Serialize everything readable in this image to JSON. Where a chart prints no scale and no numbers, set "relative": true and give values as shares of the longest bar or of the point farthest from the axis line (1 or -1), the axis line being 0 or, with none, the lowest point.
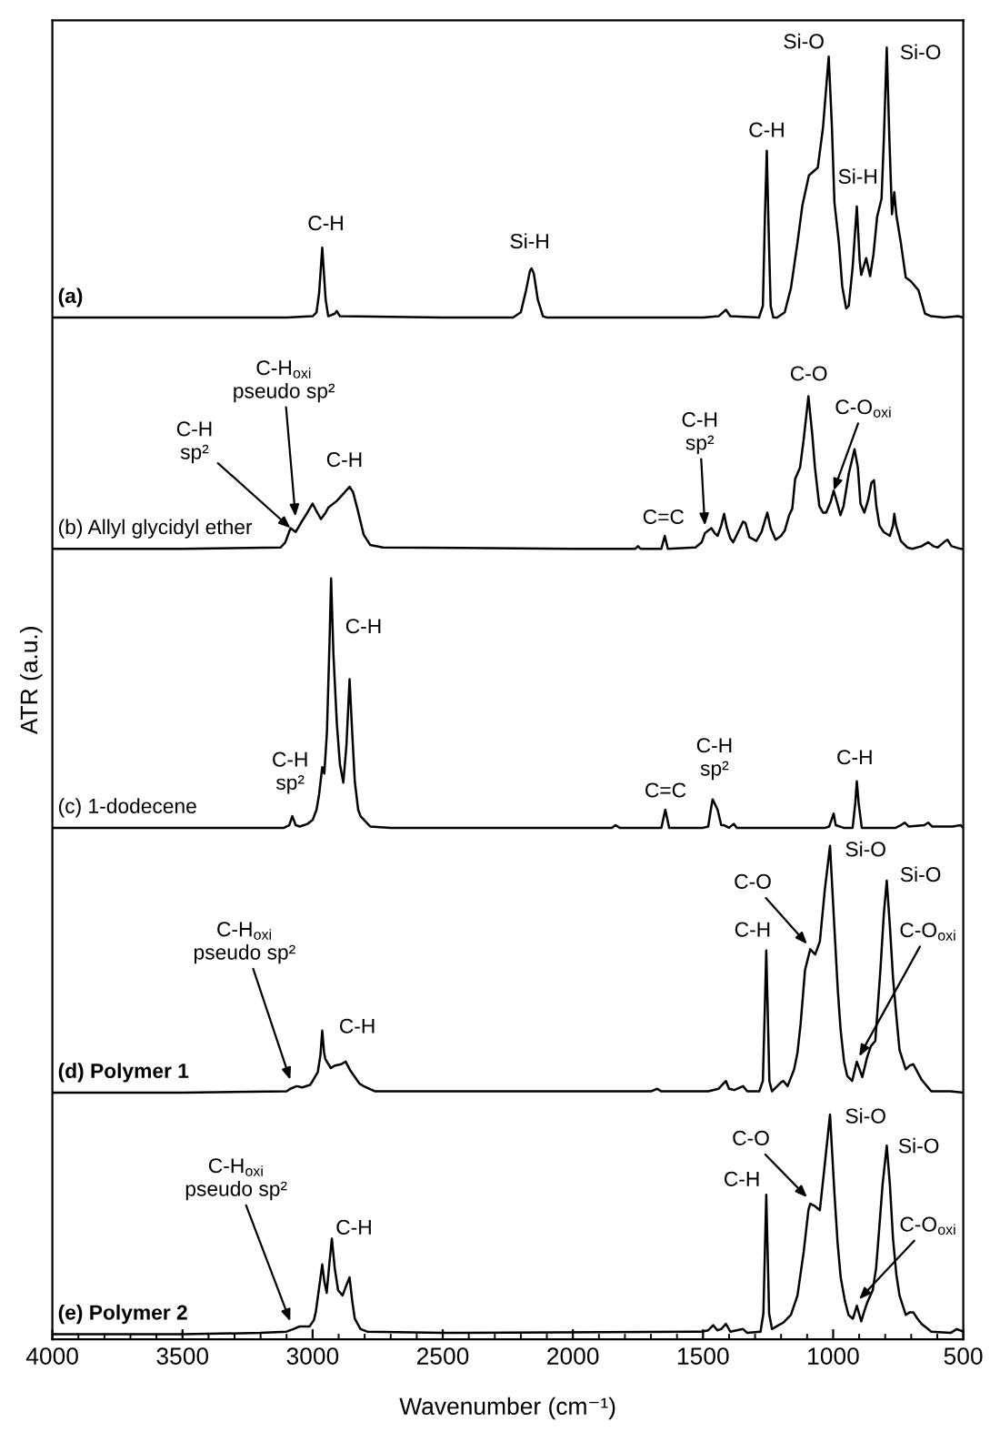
{
  "chart_data": {
    "type": "line",
    "relative": true,
    "xlabel": "Wavenumber (cm⁻¹)",
    "ylabel": "ATR (a.u.)",
    "xlim": [
      4000,
      500
    ],
    "xticks": [
      4000,
      {
        "value": 3900,
        "label": null
      },
      {
        "value": 3800,
        "label": null
      },
      {
        "value": 3700,
        "label": null
      },
      {
        "value": 3600,
        "label": null
      },
      3500,
      {
        "value": 3400,
        "label": null
      },
      {
        "value": 3300,
        "label": null
      },
      {
        "value": 3200,
        "label": null
      },
      {
        "value": 3100,
        "label": null
      },
      3000,
      {
        "value": 2900,
        "label": null
      },
      {
        "value": 2800,
        "label": null
      },
      {
        "value": 2700,
        "label": null
      },
      {
        "value": 2600,
        "label": null
      },
      2500,
      {
        "value": 2400,
        "label": null
      },
      {
        "value": 2300,
        "label": null
      },
      {
        "value": 2200,
        "label": null
      },
      {
        "value": 2100,
        "label": null
      },
      2000,
      {
        "value": 1900,
        "label": null
      },
      {
        "value": 1800,
        "label": null
      },
      {
        "value": 1700,
        "label": null
      },
      {
        "value": 1600,
        "label": null
      },
      1500,
      {
        "value": 1400,
        "label": null
      },
      {
        "value": 1300,
        "label": null
      },
      {
        "value": 1200,
        "label": null
      },
      {
        "value": 1100,
        "label": null
      },
      1000,
      {
        "value": 900,
        "label": null
      },
      {
        "value": 800,
        "label": null
      },
      {
        "value": 700,
        "label": null
      },
      {
        "value": 600,
        "label": null
      },
      500
    ],
    "tick_labels": "x",
    "series": [
      {
        "name": "(a)",
        "color": "#000000",
        "x": [
          4000,
          3500,
          3100,
          3000,
          2985,
          2975,
          2963,
          2950,
          2940,
          2915,
          2907,
          2895,
          2500,
          2230,
          2200,
          2180,
          2165,
          2159,
          2150,
          2135,
          2115,
          2100,
          1500,
          1440,
          1412,
          1395,
          1285,
          1270,
          1262,
          1255,
          1248,
          1240,
          1230,
          1215,
          1186,
          1162,
          1137,
          1118,
          1093,
          1059,
          1039,
          1017,
          1005,
          995,
          978,
          965,
          950,
          940,
          925,
          909,
          898,
          892,
          873,
          858,
          845,
          831,
          814,
          805,
          794,
          784,
          774,
          765,
          757,
          740,
          721,
          701,
          672,
          647,
          623,
          574,
          520,
          500
        ],
        "values": [
          0.791,
          0.791,
          0.791,
          0.792,
          0.795,
          0.81,
          0.845,
          0.805,
          0.792,
          0.794,
          0.796,
          0.792,
          0.791,
          0.791,
          0.795,
          0.812,
          0.827,
          0.829,
          0.825,
          0.805,
          0.792,
          0.791,
          0.791,
          0.792,
          0.797,
          0.792,
          0.791,
          0.8,
          0.87,
          0.92,
          0.86,
          0.8,
          0.791,
          0.791,
          0.795,
          0.814,
          0.849,
          0.878,
          0.901,
          0.907,
          0.938,
          0.993,
          0.94,
          0.88,
          0.849,
          0.815,
          0.798,
          0.8,
          0.83,
          0.877,
          0.835,
          0.824,
          0.837,
          0.823,
          0.84,
          0.869,
          0.883,
          0.93,
          1.0,
          0.93,
          0.871,
          0.888,
          0.87,
          0.849,
          0.822,
          0.819,
          0.812,
          0.794,
          0.792,
          0.791,
          0.792,
          0.791
        ]
      },
      {
        "name": "(b) Allyl glycidyl ether",
        "color": "#000000",
        "x": [
          4000,
          3500,
          3123,
          3105,
          3085,
          3065,
          3045,
          3020,
          3000,
          2985,
          2968,
          2950,
          2939,
          2907,
          2880,
          2858,
          2845,
          2828,
          2804,
          2779,
          2730,
          2000,
          1760,
          1750,
          1740,
          1660,
          1647,
          1635,
          1529,
          1505,
          1493,
          1468,
          1455,
          1444,
          1430,
          1419,
          1408,
          1395,
          1384,
          1365,
          1346,
          1337,
          1322,
          1295,
          1275,
          1253,
          1240,
          1221,
          1200,
          1186,
          1169,
          1157,
          1146,
          1127,
          1113,
          1095,
          1080,
          1070,
          1053,
          1039,
          1027,
          1010,
          998,
          985,
          972,
          960,
          940,
          918,
          905,
          895,
          880,
          865,
          853,
          843,
          834,
          822,
          806,
          782,
          770,
          765,
          758,
          740,
          715,
          696,
          660,
          635,
          615,
          598,
          575,
          561,
          545,
          512,
          500
        ],
        "values": [
          0.612,
          0.612,
          0.613,
          0.617,
          0.628,
          0.625,
          0.632,
          0.64,
          0.647,
          0.641,
          0.635,
          0.64,
          0.644,
          0.649,
          0.655,
          0.66,
          0.656,
          0.643,
          0.623,
          0.615,
          0.613,
          0.612,
          0.612,
          0.614,
          0.612,
          0.612,
          0.622,
          0.612,
          0.613,
          0.617,
          0.624,
          0.628,
          0.624,
          0.622,
          0.63,
          0.639,
          0.628,
          0.62,
          0.617,
          0.625,
          0.633,
          0.632,
          0.621,
          0.618,
          0.625,
          0.64,
          0.628,
          0.619,
          0.622,
          0.626,
          0.638,
          0.643,
          0.666,
          0.675,
          0.697,
          0.73,
          0.7,
          0.675,
          0.645,
          0.64,
          0.64,
          0.648,
          0.657,
          0.648,
          0.638,
          0.645,
          0.67,
          0.689,
          0.675,
          0.647,
          0.64,
          0.65,
          0.663,
          0.665,
          0.645,
          0.63,
          0.625,
          0.622,
          0.63,
          0.639,
          0.63,
          0.618,
          0.613,
          0.612,
          0.614,
          0.617,
          0.614,
          0.613,
          0.617,
          0.619,
          0.614,
          0.612,
          0.612
        ]
      },
      {
        "name": "(c) 1-dodecene",
        "color": "#000000",
        "x": [
          4000,
          3500,
          3110,
          3090,
          3078,
          3065,
          3049,
          3020,
          3000,
          2985,
          2975,
          2963,
          2955,
          2945,
          2935,
          2929,
          2920,
          2907,
          2895,
          2882,
          2870,
          2858,
          2848,
          2838,
          2825,
          2816,
          2779,
          2700,
          1850,
          1836,
          1820,
          1660,
          1645,
          1630,
          1500,
          1480,
          1470,
          1463,
          1444,
          1430,
          1419,
          1400,
          1382,
          1370,
          1030,
          1015,
          998,
          990,
          960,
          925,
          915,
          909,
          902,
          890,
          760,
          740,
          725,
          710,
          650,
          635,
          620,
          540,
          510,
          500
        ],
        "values": [
          0.396,
          0.396,
          0.396,
          0.398,
          0.405,
          0.398,
          0.397,
          0.399,
          0.402,
          0.41,
          0.422,
          0.443,
          0.438,
          0.47,
          0.54,
          0.589,
          0.53,
          0.477,
          0.445,
          0.431,
          0.46,
          0.511,
          0.47,
          0.432,
          0.41,
          0.405,
          0.397,
          0.396,
          0.396,
          0.398,
          0.396,
          0.396,
          0.41,
          0.396,
          0.396,
          0.397,
          0.41,
          0.418,
          0.41,
          0.398,
          0.398,
          0.396,
          0.399,
          0.396,
          0.396,
          0.397,
          0.407,
          0.398,
          0.396,
          0.396,
          0.415,
          0.432,
          0.415,
          0.396,
          0.396,
          0.398,
          0.4,
          0.397,
          0.398,
          0.4,
          0.397,
          0.397,
          0.398,
          0.396
        ]
      },
      {
        "name": "(d) Polymer 1",
        "color": "#000000",
        "x": [
          4000,
          3500,
          3100,
          3086,
          3061,
          3040,
          3010,
          3000,
          2980,
          2970,
          2963,
          2956,
          2951,
          2930,
          2914,
          2890,
          2873,
          2855,
          2841,
          2820,
          2804,
          2760,
          1700,
          1676,
          1660,
          1480,
          1440,
          1412,
          1400,
          1380,
          1346,
          1330,
          1284,
          1270,
          1262,
          1257,
          1252,
          1245,
          1235,
          1215,
          1200,
          1191,
          1175,
          1150,
          1137,
          1125,
          1108,
          1088,
          1069,
          1051,
          1032,
          1012,
          995,
          982,
          971,
          958,
          946,
          927,
          909,
          888,
          870,
          855,
          838,
          819,
          805,
          794,
          782,
          770,
          757,
          745,
          721,
          705,
          692,
          660,
          623,
          550,
          500
        ],
        "values": [
          0.191,
          0.191,
          0.192,
          0.194,
          0.196,
          0.195,
          0.197,
          0.2,
          0.207,
          0.22,
          0.239,
          0.222,
          0.217,
          0.21,
          0.212,
          0.213,
          0.215,
          0.208,
          0.204,
          0.198,
          0.196,
          0.192,
          0.192,
          0.194,
          0.192,
          0.192,
          0.194,
          0.2,
          0.194,
          0.193,
          0.196,
          0.192,
          0.192,
          0.2,
          0.26,
          0.301,
          0.26,
          0.2,
          0.192,
          0.196,
          0.199,
          0.2,
          0.196,
          0.209,
          0.222,
          0.244,
          0.286,
          0.302,
          0.298,
          0.308,
          0.348,
          0.382,
          0.318,
          0.27,
          0.239,
          0.215,
          0.204,
          0.2,
          0.215,
          0.203,
          0.218,
          0.227,
          0.231,
          0.284,
          0.33,
          0.355,
          0.32,
          0.28,
          0.25,
          0.224,
          0.209,
          0.212,
          0.213,
          0.201,
          0.192,
          0.192,
          0.191
        ]
      },
      {
        "name": "(e) Polymer 2",
        "color": "#000000",
        "x": [
          4000,
          3500,
          3200,
          3100,
          3074,
          3050,
          3012,
          2995,
          2988,
          2975,
          2963,
          2955,
          2946,
          2935,
          2926,
          2915,
          2902,
          2885,
          2870,
          2858,
          2848,
          2838,
          2816,
          2790,
          2500,
          1505,
          1480,
          1461,
          1445,
          1430,
          1412,
          1395,
          1346,
          1330,
          1279,
          1268,
          1262,
          1257,
          1252,
          1246,
          1235,
          1210,
          1191,
          1162,
          1137,
          1113,
          1095,
          1088,
          1069,
          1051,
          1034,
          1012,
          995,
          983,
          971,
          955,
          941,
          924,
          909,
          892,
          880,
          868,
          848,
          835,
          824,
          810,
          794,
          782,
          770,
          757,
          745,
          721,
          705,
          692,
          676,
          660,
          623,
          549,
          525,
          500
        ],
        "values": [
          0.004,
          0.004,
          0.005,
          0.006,
          0.008,
          0.01,
          0.01,
          0.015,
          0.021,
          0.04,
          0.058,
          0.045,
          0.036,
          0.06,
          0.078,
          0.055,
          0.038,
          0.034,
          0.042,
          0.048,
          0.03,
          0.016,
          0.008,
          0.006,
          0.005,
          0.006,
          0.007,
          0.011,
          0.007,
          0.008,
          0.012,
          0.006,
          0.008,
          0.005,
          0.006,
          0.02,
          0.07,
          0.112,
          0.07,
          0.02,
          0.008,
          0.011,
          0.013,
          0.019,
          0.034,
          0.068,
          0.1,
          0.105,
          0.103,
          0.1,
          0.132,
          0.174,
          0.113,
          0.075,
          0.048,
          0.03,
          0.019,
          0.016,
          0.026,
          0.014,
          0.022,
          0.029,
          0.038,
          0.055,
          0.083,
          0.12,
          0.15,
          0.12,
          0.078,
          0.05,
          0.034,
          0.019,
          0.021,
          0.021,
          0.016,
          0.012,
          0.006,
          0.005,
          0.008,
          0.006
        ]
      }
    ],
    "annotations": [
      {
        "text": "C-H",
        "x": 2963,
        "y": 0.845
      },
      {
        "text": "Si-H",
        "x": 2159,
        "y": 0.829
      },
      {
        "text": "C-H",
        "x": 1255,
        "y": 0.92
      },
      {
        "text": "Si-O",
        "x": 1017,
        "y": 0.993
      },
      {
        "text": "Si-H",
        "x": 909,
        "y": 0.877
      },
      {
        "text": "Si-O",
        "x": 794,
        "y": 1.0
      },
      {
        "text": "C-H\nsp²",
        "x": 3085,
        "y": 0.628
      },
      {
        "text": "C-H$_{oxi}$\npseudo sp²",
        "x": 3066,
        "y": 0.637
      },
      {
        "text": "C-H",
        "x": 2858,
        "y": 0.66
      },
      {
        "text": "C=C",
        "x": 1647,
        "y": 0.622
      },
      {
        "text": "C-H\nsp²",
        "x": 1493,
        "y": 0.63
      },
      {
        "text": "C-O",
        "x": 1095,
        "y": 0.73
      },
      {
        "text": "C-O$_{oxi}$",
        "x": 998,
        "y": 0.657
      },
      {
        "text": "C-H\nsp²",
        "x": 3078,
        "y": 0.405
      },
      "C-H",
      {
        "text": "C=C",
        "x": 1645,
        "y": 0.41
      },
      {
        "text": "C-H\nsp²",
        "x": 1463,
        "y": 0.418
      },
      {
        "text": "C-H",
        "x": 909,
        "y": 0.432
      },
      {
        "text": "C-H$_{oxi}$\npseudo sp²",
        "x": 3086,
        "y": 0.201
      },
      {
        "text": "C-H",
        "x": 2873,
        "y": 0.215
      },
      {
        "text": "C-H",
        "x": 1257,
        "y": 0.301
      },
      {
        "text": "C-O",
        "x": 1100,
        "y": 0.306
      },
      {
        "text": "Si-O",
        "x": 1012,
        "y": 0.382
      },
      {
        "text": "Si-O",
        "x": 794,
        "y": 0.355
      },
      {
        "text": "C-O$_{oxi}$",
        "x": 900,
        "y": 0.219
      },
      {
        "text": "C-H$_{oxi}$\npseudo sp²",
        "x": 3086,
        "y": 0.014
      },
      {
        "text": "C-H",
        "x": 2926,
        "y": 0.078
      },
      {
        "text": "C-H",
        "x": 1257,
        "y": 0.112
      },
      {
        "text": "C-O",
        "x": 1100,
        "y": 0.11
      },
      {
        "text": "Si-O",
        "x": 1012,
        "y": 0.174
      },
      {
        "text": "Si-O",
        "x": 794,
        "y": 0.15
      },
      {
        "text": "C-O$_{oxi}$",
        "x": 900,
        "y": 0.031
      }
    ]
  }
}
